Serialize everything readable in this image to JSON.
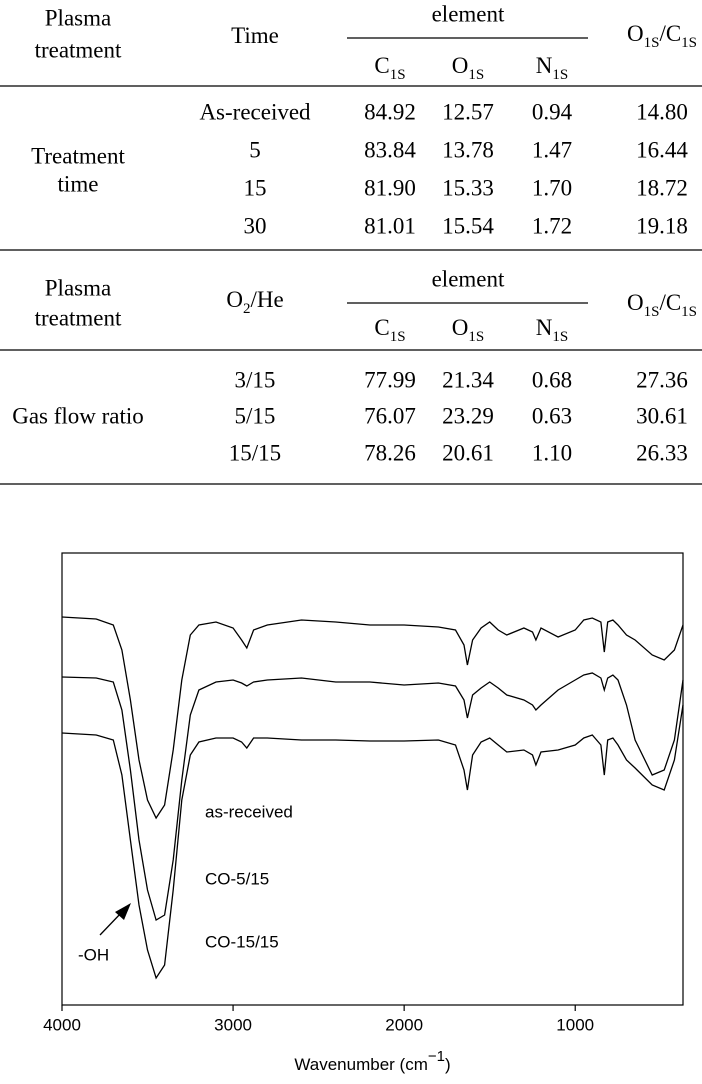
{
  "tables": [
    {
      "header": {
        "group_col": [
          "Plasma",
          "treatment"
        ],
        "var_col": [
          "Time"
        ],
        "element": "element",
        "elements": [
          [
            "C",
            "1S"
          ],
          [
            "O",
            "1S"
          ],
          [
            "N",
            "1S"
          ]
        ],
        "ratio": [
          "O",
          "1S",
          "/C",
          "1S"
        ]
      },
      "group_label": [
        "Treatment",
        "time"
      ],
      "rows": [
        [
          "As-received",
          "84.92",
          "12.57",
          "0.94",
          "14.80"
        ],
        [
          "5",
          "83.84",
          "13.78",
          "1.47",
          "16.44"
        ],
        [
          "15",
          "81.90",
          "15.33",
          "1.70",
          "18.72"
        ],
        [
          "30",
          "81.01",
          "15.54",
          "1.72",
          "19.18"
        ]
      ]
    },
    {
      "header": {
        "group_col": [
          "Plasma",
          "treatment"
        ],
        "var_col": [
          "O",
          "2",
          "/He"
        ],
        "element": "element",
        "elements": [
          [
            "C",
            "1S"
          ],
          [
            "O",
            "1S"
          ],
          [
            "N",
            "1S"
          ]
        ],
        "ratio": [
          "O",
          "1S",
          "/C",
          "1S"
        ]
      },
      "group_label": [
        "Gas flow ratio"
      ],
      "rows": [
        [
          "3/15",
          "77.99",
          "21.34",
          "0.68",
          "27.36"
        ],
        [
          "5/15",
          "76.07",
          "23.29",
          "0.63",
          "30.61"
        ],
        [
          "15/15",
          "78.26",
          "20.61",
          "1.10",
          "26.33"
        ]
      ]
    }
  ],
  "chart_data": {
    "type": "line",
    "xlabel": [
      "Wavenumber (cm",
      "−1",
      ")"
    ],
    "xlim": [
      4000,
      370
    ],
    "xticks": [
      4000,
      3000,
      2000,
      1000
    ],
    "ylim": [
      0,
      452
    ],
    "annotation": "-OH",
    "x": [
      4000,
      3800,
      3700,
      3650,
      3600,
      3550,
      3500,
      3450,
      3400,
      3350,
      3300,
      3250,
      3200,
      3100,
      3000,
      2950,
      2920,
      2880,
      2800,
      2600,
      2400,
      2200,
      2000,
      1800,
      1700,
      1650,
      1630,
      1600,
      1550,
      1500,
      1450,
      1400,
      1300,
      1250,
      1230,
      1200,
      1100,
      1000,
      950,
      900,
      850,
      830,
      810,
      780,
      750,
      700,
      650,
      550,
      480,
      420,
      370
    ],
    "series": [
      {
        "name": "as-received",
        "color": "#000000",
        "values": [
          388,
          386,
          380,
          355,
          305,
          245,
          205,
          187,
          200,
          255,
          325,
          370,
          380,
          383,
          377,
          365,
          357,
          375,
          380,
          385,
          383,
          380,
          380,
          378,
          375,
          360,
          340,
          365,
          377,
          383,
          375,
          370,
          377,
          373,
          365,
          377,
          368,
          375,
          385,
          387,
          383,
          353,
          383,
          385,
          380,
          370,
          365,
          350,
          345,
          355,
          380
        ]
      },
      {
        "name": "CO-5/15",
        "color": "#000000",
        "values": [
          328,
          327,
          323,
          295,
          235,
          165,
          115,
          85,
          90,
          145,
          225,
          290,
          315,
          323,
          325,
          322,
          319,
          323,
          325,
          327,
          323,
          323,
          320,
          322,
          319,
          305,
          287,
          310,
          317,
          323,
          317,
          310,
          305,
          300,
          295,
          300,
          315,
          325,
          330,
          332,
          327,
          315,
          327,
          330,
          325,
          300,
          265,
          230,
          235,
          265,
          325
        ]
      },
      {
        "name": "CO-15/15",
        "color": "#000000",
        "values": [
          272,
          270,
          265,
          230,
          165,
          100,
          55,
          27,
          40,
          115,
          205,
          250,
          263,
          267,
          267,
          263,
          257,
          267,
          267,
          265,
          265,
          264,
          264,
          265,
          260,
          235,
          215,
          250,
          263,
          267,
          260,
          253,
          255,
          250,
          240,
          253,
          255,
          260,
          267,
          270,
          260,
          230,
          265,
          267,
          260,
          245,
          237,
          220,
          215,
          245,
          300
        ]
      }
    ]
  }
}
